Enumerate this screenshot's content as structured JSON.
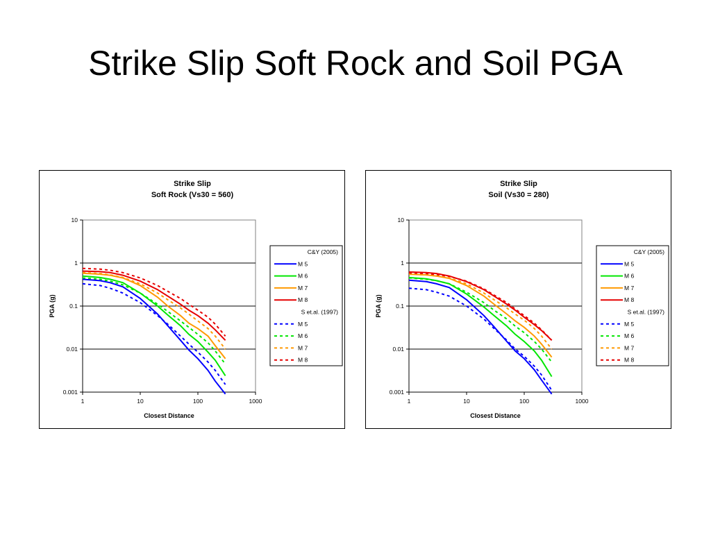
{
  "slide": {
    "title": "Strike Slip Soft Rock and Soil PGA"
  },
  "chart_data": [
    {
      "type": "line",
      "title": "Strike Slip",
      "subtitle": "Soft Rock (Vs30 = 560)",
      "xlabel": "Closest Distance",
      "ylabel": "PGA (g)",
      "xscale": "log",
      "yscale": "log",
      "xlim": [
        1,
        1000
      ],
      "ylim": [
        0.001,
        10
      ],
      "x_ticks": [
        "1",
        "10",
        "100",
        "1000"
      ],
      "y_ticks": [
        "0.001",
        "0.01",
        "0.1",
        "1",
        "10"
      ],
      "grid": "horizontal major",
      "legend_position": "right",
      "legend_groups": [
        "C&Y (2005)",
        "S et.al. (1997)"
      ],
      "series": [
        {
          "name": "M 5",
          "group": "C&Y (2005)",
          "style": "solid",
          "color": "#0000ff",
          "x": [
            1,
            2,
            3,
            5,
            10,
            20,
            30,
            50,
            70,
            100,
            150,
            200,
            300
          ],
          "y": [
            0.42,
            0.39,
            0.35,
            0.28,
            0.15,
            0.065,
            0.035,
            0.016,
            0.0095,
            0.006,
            0.0032,
            0.0018,
            0.0009
          ]
        },
        {
          "name": "M 6",
          "group": "C&Y (2005)",
          "style": "solid",
          "color": "#00e600",
          "x": [
            1,
            2,
            3,
            5,
            10,
            20,
            30,
            50,
            70,
            100,
            150,
            200,
            300
          ],
          "y": [
            0.5,
            0.46,
            0.42,
            0.35,
            0.2,
            0.1,
            0.062,
            0.035,
            0.022,
            0.015,
            0.0085,
            0.0055,
            0.0024
          ]
        },
        {
          "name": "M 7",
          "group": "C&Y (2005)",
          "style": "solid",
          "color": "#ff9900",
          "x": [
            1,
            2,
            3,
            5,
            10,
            20,
            30,
            50,
            70,
            100,
            150,
            200,
            300
          ],
          "y": [
            0.58,
            0.55,
            0.52,
            0.45,
            0.3,
            0.16,
            0.1,
            0.06,
            0.04,
            0.03,
            0.02,
            0.012,
            0.006
          ]
        },
        {
          "name": "M 8",
          "group": "C&Y (2005)",
          "style": "solid",
          "color": "#e60000",
          "x": [
            1,
            2,
            3,
            5,
            10,
            20,
            30,
            50,
            70,
            100,
            150,
            200,
            300
          ],
          "y": [
            0.65,
            0.63,
            0.6,
            0.52,
            0.38,
            0.24,
            0.17,
            0.11,
            0.08,
            0.06,
            0.04,
            0.028,
            0.016
          ]
        },
        {
          "name": "M 5",
          "group": "S et.al. (1997)",
          "style": "dashed",
          "color": "#0000ff",
          "x": [
            1,
            2,
            3,
            5,
            10,
            20,
            30,
            50,
            70,
            100,
            150,
            200,
            300
          ],
          "y": [
            0.33,
            0.3,
            0.26,
            0.2,
            0.12,
            0.06,
            0.038,
            0.02,
            0.013,
            0.0085,
            0.005,
            0.0032,
            0.0015
          ]
        },
        {
          "name": "M 6",
          "group": "S et.al. (1997)",
          "style": "dashed",
          "color": "#00e600",
          "x": [
            1,
            2,
            3,
            5,
            10,
            20,
            30,
            50,
            70,
            100,
            150,
            200,
            300
          ],
          "y": [
            0.45,
            0.42,
            0.38,
            0.31,
            0.2,
            0.11,
            0.075,
            0.045,
            0.032,
            0.022,
            0.014,
            0.009,
            0.0045
          ]
        },
        {
          "name": "M 7",
          "group": "S et.al. (1997)",
          "style": "dashed",
          "color": "#ff9900",
          "x": [
            1,
            2,
            3,
            5,
            10,
            20,
            30,
            50,
            70,
            100,
            150,
            200,
            300
          ],
          "y": [
            0.6,
            0.57,
            0.53,
            0.46,
            0.33,
            0.2,
            0.14,
            0.09,
            0.065,
            0.045,
            0.03,
            0.02,
            0.01
          ]
        },
        {
          "name": "M 8",
          "group": "S et.al. (1997)",
          "style": "dashed",
          "color": "#e60000",
          "x": [
            1,
            2,
            3,
            5,
            10,
            20,
            30,
            50,
            70,
            100,
            150,
            200,
            300
          ],
          "y": [
            0.75,
            0.72,
            0.68,
            0.6,
            0.45,
            0.3,
            0.22,
            0.15,
            0.11,
            0.08,
            0.055,
            0.038,
            0.02
          ]
        }
      ]
    },
    {
      "type": "line",
      "title": "Strike Slip",
      "subtitle": "Soil (Vs30 = 280)",
      "xlabel": "Closest Distance",
      "ylabel": "PGA (g)",
      "xscale": "log",
      "yscale": "log",
      "xlim": [
        1,
        1000
      ],
      "ylim": [
        0.001,
        10
      ],
      "x_ticks": [
        "1",
        "10",
        "100",
        "1000"
      ],
      "y_ticks": [
        "0.001",
        "0.01",
        "0.1",
        "1",
        "10"
      ],
      "grid": "horizontal major",
      "legend_position": "right",
      "legend_groups": [
        "C&Y (2005)",
        "S et.al. (1997)"
      ],
      "series": [
        {
          "name": "M 5",
          "group": "C&Y (2005)",
          "style": "solid",
          "color": "#0000ff",
          "x": [
            1,
            2,
            3,
            5,
            10,
            20,
            30,
            50,
            70,
            100,
            150,
            200,
            300
          ],
          "y": [
            0.4,
            0.37,
            0.33,
            0.27,
            0.14,
            0.06,
            0.033,
            0.015,
            0.009,
            0.006,
            0.0033,
            0.0019,
            0.0009
          ]
        },
        {
          "name": "M 6",
          "group": "C&Y (2005)",
          "style": "solid",
          "color": "#00e600",
          "x": [
            1,
            2,
            3,
            5,
            10,
            20,
            30,
            50,
            70,
            100,
            150,
            200,
            300
          ],
          "y": [
            0.46,
            0.43,
            0.39,
            0.33,
            0.19,
            0.095,
            0.06,
            0.034,
            0.022,
            0.015,
            0.009,
            0.0055,
            0.0023
          ]
        },
        {
          "name": "M 7",
          "group": "C&Y (2005)",
          "style": "solid",
          "color": "#ff9900",
          "x": [
            1,
            2,
            3,
            5,
            10,
            20,
            30,
            50,
            70,
            100,
            150,
            200,
            300
          ],
          "y": [
            0.55,
            0.53,
            0.5,
            0.44,
            0.3,
            0.17,
            0.11,
            0.065,
            0.045,
            0.032,
            0.02,
            0.013,
            0.0065
          ]
        },
        {
          "name": "M 8",
          "group": "C&Y (2005)",
          "style": "solid",
          "color": "#e60000",
          "x": [
            1,
            2,
            3,
            5,
            10,
            20,
            30,
            50,
            70,
            100,
            150,
            200,
            300
          ],
          "y": [
            0.62,
            0.6,
            0.57,
            0.5,
            0.37,
            0.24,
            0.17,
            0.11,
            0.08,
            0.055,
            0.037,
            0.027,
            0.016
          ]
        },
        {
          "name": "M 5",
          "group": "S et.al. (1997)",
          "style": "dashed",
          "color": "#0000ff",
          "x": [
            1,
            2,
            3,
            5,
            10,
            20,
            30,
            50,
            70,
            100,
            150,
            200,
            300
          ],
          "y": [
            0.26,
            0.24,
            0.21,
            0.17,
            0.1,
            0.05,
            0.03,
            0.016,
            0.01,
            0.0068,
            0.004,
            0.0025,
            0.0011
          ]
        },
        {
          "name": "M 6",
          "group": "S et.al. (1997)",
          "style": "dashed",
          "color": "#00e600",
          "x": [
            1,
            2,
            3,
            5,
            10,
            20,
            30,
            50,
            70,
            100,
            150,
            200,
            300
          ],
          "y": [
            0.45,
            0.42,
            0.39,
            0.33,
            0.21,
            0.12,
            0.08,
            0.05,
            0.034,
            0.024,
            0.015,
            0.01,
            0.005
          ]
        },
        {
          "name": "M 7",
          "group": "S et.al. (1997)",
          "style": "dashed",
          "color": "#ff9900",
          "x": [
            1,
            2,
            3,
            5,
            10,
            20,
            30,
            50,
            70,
            100,
            150,
            200,
            300
          ],
          "y": [
            0.55,
            0.53,
            0.5,
            0.45,
            0.33,
            0.2,
            0.14,
            0.09,
            0.065,
            0.047,
            0.03,
            0.02,
            0.01
          ]
        },
        {
          "name": "M 8",
          "group": "S et.al. (1997)",
          "style": "dashed",
          "color": "#e60000",
          "x": [
            1,
            2,
            3,
            5,
            10,
            20,
            30,
            50,
            70,
            100,
            150,
            200,
            300
          ],
          "y": [
            0.58,
            0.56,
            0.54,
            0.49,
            0.38,
            0.25,
            0.18,
            0.12,
            0.085,
            0.06,
            0.04,
            0.028,
            0.016
          ]
        }
      ]
    }
  ]
}
